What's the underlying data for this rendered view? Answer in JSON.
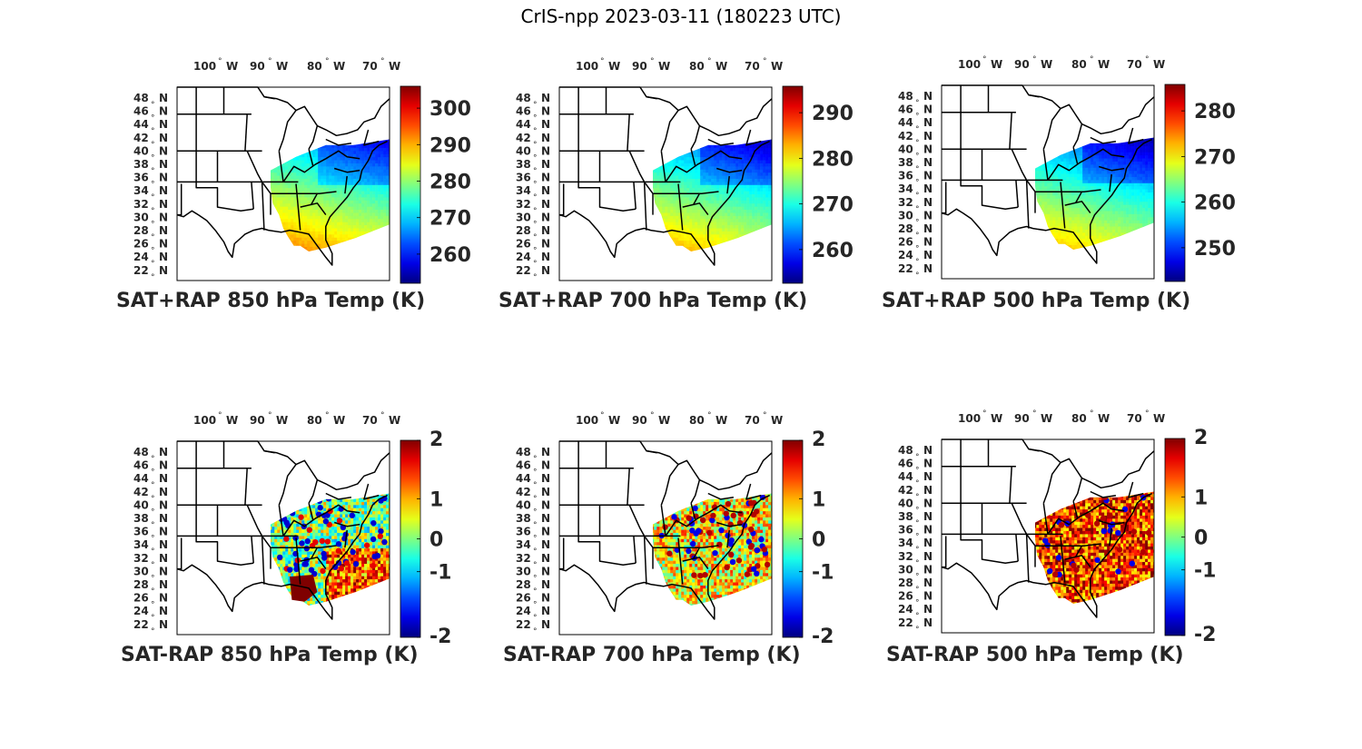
{
  "figure_title": "CrIS-npp 2023-03-11 (180223 UTC)",
  "lon_labels": [
    "100",
    "90",
    "80",
    "70"
  ],
  "lon_suffix": "W",
  "lat_labels": [
    "48",
    "46",
    "44",
    "42",
    "40",
    "38",
    "36",
    "34",
    "32",
    "30",
    "28",
    "26",
    "24",
    "22"
  ],
  "lat_suffix": "N",
  "degree_symbol": "°",
  "panels": [
    {
      "id": "p1",
      "title": "SAT+RAP 850 hPa Temp (K)",
      "colorbar_ticks": [
        "300",
        "290",
        "280",
        "270",
        "260"
      ],
      "variant": "sum850"
    },
    {
      "id": "p2",
      "title": "SAT+RAP 700 hPa Temp (K)",
      "colorbar_ticks": [
        "290",
        "280",
        "270",
        "260"
      ],
      "variant": "sum700"
    },
    {
      "id": "p3",
      "title": "SAT+RAP 500 hPa Temp (K)",
      "colorbar_ticks": [
        "280",
        "270",
        "260",
        "250"
      ],
      "variant": "sum500"
    },
    {
      "id": "p4",
      "title": "SAT-RAP 850 hPa Temp (K)",
      "colorbar_ticks": [
        "2",
        "1",
        "0",
        "-1",
        "-2"
      ],
      "variant": "diff850"
    },
    {
      "id": "p5",
      "title": "SAT-RAP 700 hPa Temp (K)",
      "colorbar_ticks": [
        "2",
        "1",
        "0",
        "-1",
        "-2"
      ],
      "variant": "diff700"
    },
    {
      "id": "p6",
      "title": "SAT-RAP 500 hPa Temp (K)",
      "colorbar_ticks": [
        "2",
        "1",
        "0",
        "-1",
        "-2"
      ],
      "variant": "diff500"
    }
  ],
  "colormap": "jet"
}
